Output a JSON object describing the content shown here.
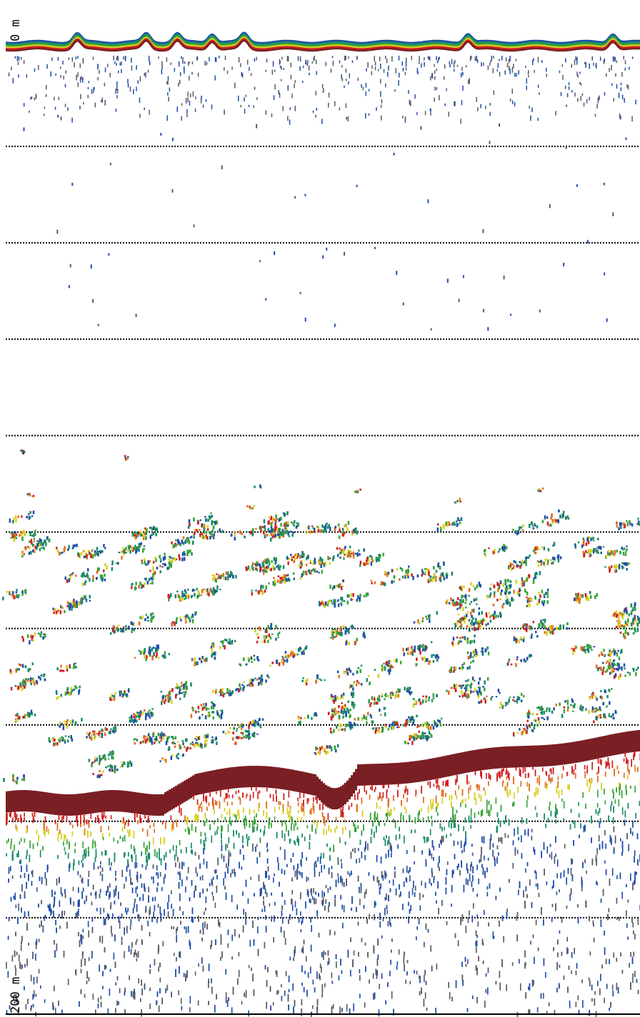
{
  "depth_scale": {
    "top_label": "0 m",
    "bottom_label": "200 m",
    "min_depth_m": 0,
    "max_depth_m": 200,
    "gridline_interval_m": 20
  },
  "colors": {
    "background": "#ffffff",
    "gridline": "#000000",
    "seabed": "#7a1f24",
    "echo_scale": [
      "#5a5a66",
      "#1f4fa8",
      "#1a8a6a",
      "#3aa33a",
      "#d8d020",
      "#e07020",
      "#d02020",
      "#7a1f24"
    ]
  }
}
